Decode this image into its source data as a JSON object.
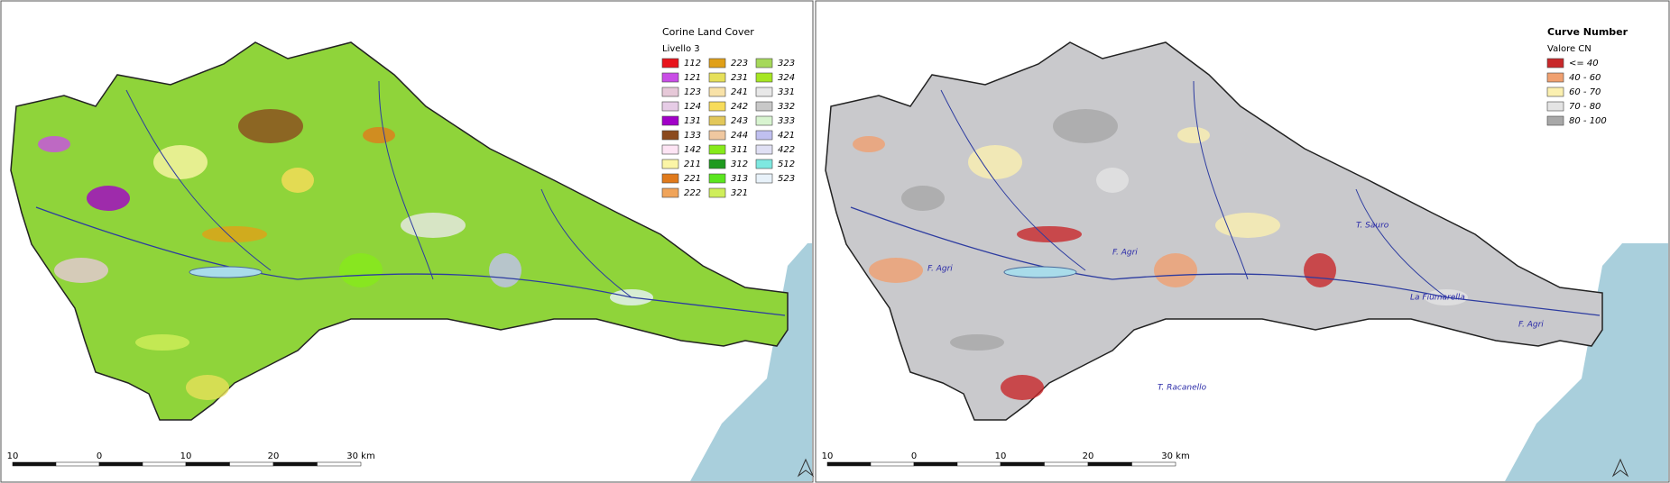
{
  "panels": [
    {
      "legend": {
        "title": "Corine Land Cover",
        "subtitle": "Livello 3",
        "columns": 3,
        "items": [
          {
            "label": "112",
            "color": "#e8141c"
          },
          {
            "label": "121",
            "color": "#c94de6"
          },
          {
            "label": "123",
            "color": "#e6c8d8"
          },
          {
            "label": "124",
            "color": "#e6cce6"
          },
          {
            "label": "131",
            "color": "#a100c8"
          },
          {
            "label": "133",
            "color": "#8b4a1e"
          },
          {
            "label": "142",
            "color": "#fde4f4"
          },
          {
            "label": "211",
            "color": "#fbf5a6"
          },
          {
            "label": "221",
            "color": "#e07a1c"
          },
          {
            "label": "222",
            "color": "#f0a45a"
          },
          {
            "label": "223",
            "color": "#e0a018"
          },
          {
            "label": "231",
            "color": "#e6e05a"
          },
          {
            "label": "241",
            "color": "#f8e2a8"
          },
          {
            "label": "242",
            "color": "#f7dc5a"
          },
          {
            "label": "243",
            "color": "#e2c75a"
          },
          {
            "label": "244",
            "color": "#f0c8a0"
          },
          {
            "label": "311",
            "color": "#86ea1a"
          },
          {
            "label": "312",
            "color": "#1e9a1e"
          },
          {
            "label": "313",
            "color": "#5ae61e"
          },
          {
            "label": "321",
            "color": "#cfee5a"
          },
          {
            "label": "323",
            "color": "#a6d85a"
          },
          {
            "label": "324",
            "color": "#a6e622"
          },
          {
            "label": "331",
            "color": "#e8e8e8"
          },
          {
            "label": "332",
            "color": "#c8c8c8"
          },
          {
            "label": "333",
            "color": "#d8f4d0"
          },
          {
            "label": "421",
            "color": "#c0c0f0"
          },
          {
            "label": "422",
            "color": "#e0e0f4"
          },
          {
            "label": "512",
            "color": "#7ee8e0"
          },
          {
            "label": "523",
            "color": "#e8f2fa"
          }
        ]
      },
      "fill": "#8fd43a",
      "scale": [
        "10",
        "0",
        "10",
        "20",
        "30 km"
      ],
      "rivers": []
    },
    {
      "legend": {
        "title": "Curve Number",
        "subtitle": "Valore CN",
        "columns": 1,
        "items": [
          {
            "label": "<= 40",
            "color": "#c8282a"
          },
          {
            "label": "40 - 60",
            "color": "#f0a070"
          },
          {
            "label": "60 - 70",
            "color": "#fbf0b0"
          },
          {
            "label": "70 - 80",
            "color": "#e4e4e4"
          },
          {
            "label": "80 - 100",
            "color": "#a8a8a8"
          }
        ]
      },
      "fill": "#c9c9cc",
      "scale": [
        "10",
        "0",
        "10",
        "20",
        "30 km"
      ],
      "rivers": [
        "F. Agri",
        "T. Sauro",
        "F. Agri",
        "La Fiumarella",
        "T. Racanello",
        "F. Agri"
      ]
    }
  ]
}
